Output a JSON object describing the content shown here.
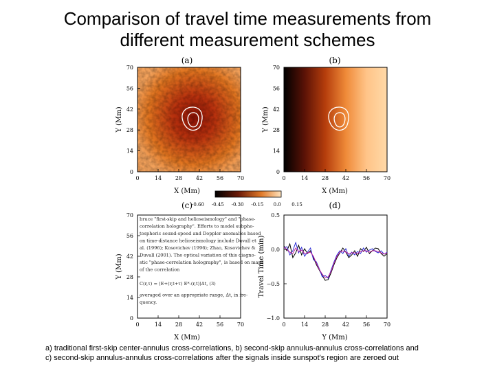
{
  "title_lines": [
    "Comparison of travel time measurements from",
    "different measurement schemes"
  ],
  "caption_lines": [
    "a) traditional first-skip center-annulus cross-correlations, b) second-skip annulus-annulus cross-correlations and",
    "c) second-skip annulus-annulus cross-correlations after the signals inside sunspot's region are zeroed out"
  ],
  "chart_data": [
    {
      "type": "heatmap",
      "panel": "(a)",
      "xlabel": "X (Mm)",
      "ylabel": "Y (Mm)",
      "xlim": [
        0,
        70
      ],
      "ylim": [
        0,
        70
      ],
      "x_ticks": [
        "0",
        "14",
        "28",
        "42",
        "56",
        "70"
      ],
      "y_ticks": [
        "0",
        "14",
        "28",
        "42",
        "56",
        "70"
      ],
      "description_colormap": "orange-red noisy travel-time map, darker toward center",
      "colors": {
        "light": "#f3a25a",
        "dark": "#8a1206"
      }
    },
    {
      "type": "heatmap",
      "panel": "(b)",
      "xlabel": "X (Mm)",
      "ylabel": "Y (Mm)",
      "xlim": [
        0,
        70
      ],
      "ylim": [
        0,
        70
      ],
      "x_ticks": [
        "0",
        "14",
        "28",
        "42",
        "56",
        "70"
      ],
      "y_ticks": [
        "0",
        "14",
        "28",
        "42",
        "56",
        "70"
      ],
      "gradient_stops": [
        "#000000",
        "#5a1206",
        "#b53d0c",
        "#ef8a38",
        "#ffc488",
        "#ffd9a8"
      ]
    },
    {
      "type": "colorbar",
      "ticks": [
        "-0.60",
        "-0.45",
        "-0.30",
        "-0.15",
        "0.0",
        "0.15"
      ],
      "range": [
        -0.6,
        0.15
      ]
    },
    {
      "type": "heatmap",
      "panel": "(c)",
      "xlabel": "X (Mm)",
      "ylabel": "Y (Mm)",
      "xlim": [
        0,
        70
      ],
      "ylim": [
        0,
        70
      ],
      "x_ticks": [
        "0",
        "14",
        "28",
        "42",
        "56",
        "70"
      ],
      "y_ticks": [
        "0",
        "14",
        "28",
        "42",
        "56",
        "70"
      ],
      "overlay_text_lines": [
        "bruce \"first-skip and helioseismology\" and \"phase-",
        "correlation holography\". Efforts to model subpho-",
        "tospheric sound-speed and Doppler anomalies based",
        "on time-distance helioseismology include Duvall et",
        "al. (1996); Kosovichev (1996); Zhao, Kosovichev &",
        "Duvall (2001). The optical variation of this diagno-",
        "stic \"phase-correlation holography\", is based on maps",
        "of the correlation",
        "C(r,τ) = ⟨E+(r,t+τ) E*-(r,t)⟩Δt,   (3)",
        "averaged over an appropriate range, Δt, in fre-",
        "quency."
      ]
    },
    {
      "type": "line",
      "panel": "(d)",
      "xlabel": "Y (Mm)",
      "ylabel": "Travel Time (min)",
      "xlim": [
        0,
        70
      ],
      "ylim": [
        -1.0,
        0.5
      ],
      "x_ticks": [
        "0",
        "14",
        "28",
        "42",
        "56",
        "70"
      ],
      "y_ticks": [
        "−1.0",
        "−0.5",
        "0.0",
        "0.5"
      ],
      "x": [
        0,
        2,
        4,
        6,
        8,
        10,
        12,
        14,
        16,
        18,
        20,
        22,
        24,
        26,
        28,
        30,
        32,
        34,
        36,
        38,
        40,
        42,
        44,
        46,
        48,
        50,
        52,
        54,
        56,
        58,
        60,
        62,
        64,
        66,
        68,
        70
      ],
      "series": [
        {
          "name": "black",
          "color": "#000000",
          "values": [
            0.05,
            -0.02,
            0.08,
            -0.12,
            -0.05,
            0.06,
            -0.08,
            0.01,
            -0.06,
            -0.02,
            -0.12,
            -0.22,
            -0.3,
            -0.38,
            -0.45,
            -0.44,
            -0.34,
            -0.22,
            -0.12,
            -0.05,
            0.02,
            -0.04,
            -0.12,
            -0.08,
            -0.02,
            -0.1,
            0.01,
            -0.03,
            0.03,
            -0.06,
            -0.02,
            0.02,
            0.01,
            -0.06,
            -0.1,
            -0.06
          ]
        },
        {
          "name": "blue",
          "color": "#2b2bd6",
          "values": [
            0.02,
            0.04,
            -0.08,
            -0.02,
            0.1,
            -0.05,
            0.03,
            -0.1,
            -0.04,
            0.02,
            -0.15,
            -0.18,
            -0.28,
            -0.4,
            -0.38,
            -0.42,
            -0.3,
            -0.18,
            -0.08,
            -0.02,
            -0.06,
            0.01,
            -0.1,
            -0.04,
            -0.08,
            -0.03,
            -0.06,
            0.02,
            -0.04,
            -0.01,
            0.01,
            -0.03,
            -0.05,
            -0.02,
            -0.07,
            -0.04
          ]
        },
        {
          "name": "magenta",
          "color": "#c0269c",
          "values": [
            0.03,
            0.0,
            -0.04,
            -0.06,
            0.02,
            -0.03,
            -0.01,
            -0.06,
            -0.05,
            -0.04,
            -0.1,
            -0.2,
            -0.29,
            -0.36,
            -0.41,
            -0.4,
            -0.32,
            -0.2,
            -0.1,
            -0.04,
            -0.02,
            -0.04,
            -0.06,
            -0.05,
            -0.05,
            -0.06,
            -0.03,
            -0.02,
            -0.02,
            -0.04,
            -0.02,
            -0.02,
            -0.03,
            -0.05,
            -0.07,
            -0.05
          ]
        }
      ]
    }
  ]
}
